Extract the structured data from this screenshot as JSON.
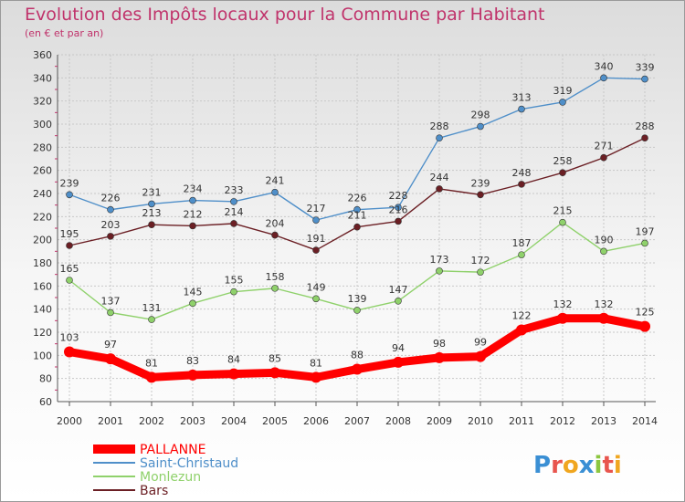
{
  "title": "Evolution des Impôts locaux pour la Commune par Habitant",
  "subtitle": "(en € et par an)",
  "logo": {
    "text": "Proxiti",
    "letters": [
      "P",
      "r",
      "o",
      "x",
      "i",
      "t",
      "i"
    ],
    "colors": [
      "#3a8fd4",
      "#e8554e",
      "#f0a61f",
      "#3a8fd4",
      "#8cc63f",
      "#e8554e",
      "#f0a61f"
    ]
  },
  "chart_data": {
    "type": "line",
    "title": "Evolution des Impôts locaux pour la Commune par Habitant",
    "subtitle": "(en € et par an)",
    "x": [
      "2000",
      "2001",
      "2002",
      "2003",
      "2004",
      "2005",
      "2006",
      "2007",
      "2008",
      "2009",
      "2010",
      "2011",
      "2012",
      "2013",
      "2014"
    ],
    "ylim": [
      60,
      360
    ],
    "yticks": [
      60,
      80,
      100,
      120,
      140,
      160,
      180,
      200,
      220,
      240,
      260,
      280,
      300,
      320,
      340,
      360
    ],
    "grid": true,
    "legend_position": "bottom-left",
    "series": [
      {
        "name": "PALLANNE",
        "color": "#ff0000",
        "values": [
          103,
          97,
          81,
          83,
          84,
          85,
          81,
          88,
          94,
          98,
          99,
          122,
          132,
          132,
          125
        ]
      },
      {
        "name": "Saint-Christaud",
        "color": "#4f8fc9",
        "values": [
          239,
          226,
          231,
          234,
          233,
          241,
          217,
          226,
          228,
          288,
          298,
          313,
          319,
          340,
          339
        ]
      },
      {
        "name": "Monlezun",
        "color": "#8fd16b",
        "values": [
          165,
          137,
          131,
          145,
          155,
          158,
          149,
          139,
          147,
          173,
          172,
          187,
          215,
          190,
          197
        ]
      },
      {
        "name": "Bars",
        "color": "#6b1f24",
        "values": [
          195,
          203,
          213,
          212,
          214,
          204,
          191,
          211,
          216,
          244,
          239,
          248,
          258,
          271,
          288
        ]
      }
    ]
  }
}
